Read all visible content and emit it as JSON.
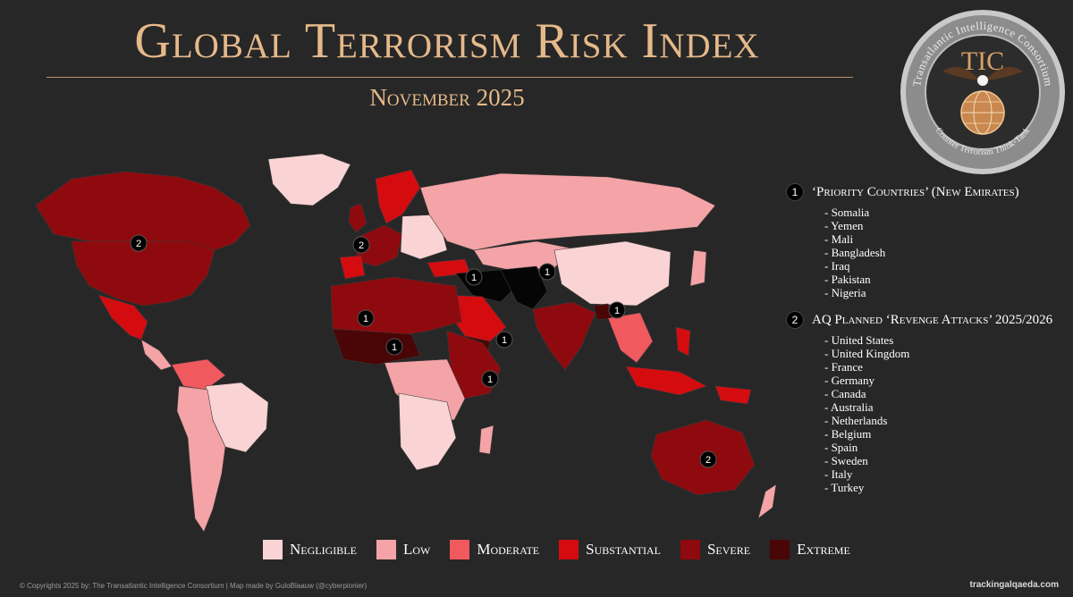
{
  "title": "Global Terrorism Risk Index",
  "subtitle": "November 2025",
  "logo": {
    "ring_text_top": "Transatlantic Intelligence Consortium",
    "ring_text_bottom": "Counter Terrorism Think-Tank",
    "initials": "TIC"
  },
  "colors": {
    "background": "#272727",
    "title": "#e6b98a",
    "negligible": "#fad4d4",
    "low": "#f4a3a6",
    "moderate": "#f0595e",
    "substantial": "#d40c10",
    "severe": "#8f0a0e",
    "extreme": "#4a0506",
    "black": "#050505"
  },
  "map_markers": [
    {
      "label": "2",
      "place": "Canada/USA"
    },
    {
      "label": "2",
      "place": "United Kingdom"
    },
    {
      "label": "1",
      "place": "Iraq"
    },
    {
      "label": "1",
      "place": "Pakistan"
    },
    {
      "label": "1",
      "place": "Mali"
    },
    {
      "label": "1",
      "place": "Nigeria"
    },
    {
      "label": "1",
      "place": "Yemen"
    },
    {
      "label": "1",
      "place": "Bangladesh"
    },
    {
      "label": "1",
      "place": "Somalia"
    },
    {
      "label": "2",
      "place": "Australia"
    }
  ],
  "priority": {
    "badge": "1",
    "heading": "‘Priority Countries’ (New Emirates)",
    "items": [
      "- Somalia",
      "- Yemen",
      "- Mali",
      "- Bangladesh",
      "- Iraq",
      "- Pakistan",
      "- Nigeria"
    ]
  },
  "revenge": {
    "badge": "2",
    "heading": "AQ Planned ‘Revenge Attacks’ 2025/2026",
    "items": [
      "- United States",
      "- United Kingdom",
      "- France",
      "- Germany",
      "- Canada",
      "- Australia",
      "- Netherlands",
      "- Belgium",
      "- Spain",
      "- Sweden",
      "- Italy",
      "- Turkey"
    ]
  },
  "legend": [
    {
      "label": "Negligible",
      "color": "#fad4d4"
    },
    {
      "label": "Low",
      "color": "#f4a3a6"
    },
    {
      "label": "Moderate",
      "color": "#f0595e"
    },
    {
      "label": "Substantial",
      "color": "#d40c10"
    },
    {
      "label": "Severe",
      "color": "#8f0a0e"
    },
    {
      "label": "Extreme",
      "color": "#4a0506"
    }
  ],
  "footer": {
    "left": "© Copyrights 2025 by: The Transatlantic Intelligence Consortium  |  Map made by GuloBlaauw (@cyberpionier)",
    "right": "trackingalqaeda.com"
  }
}
